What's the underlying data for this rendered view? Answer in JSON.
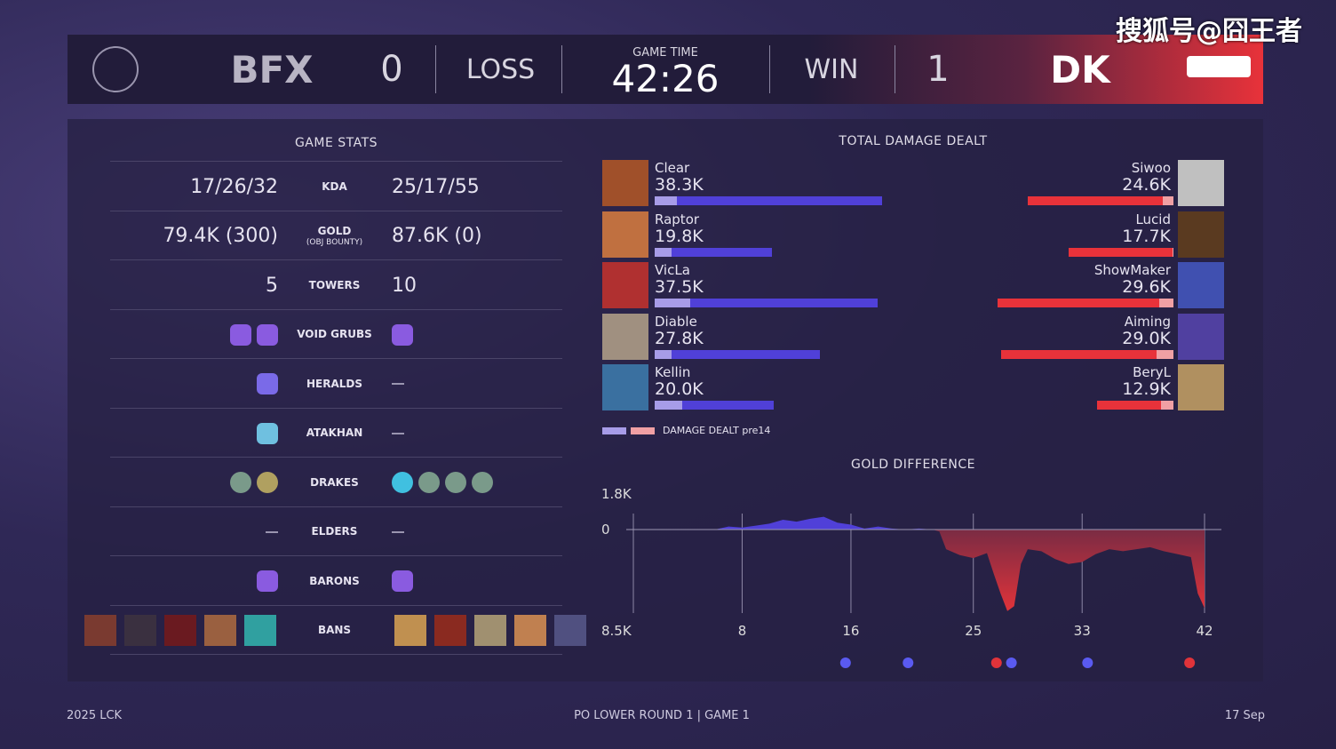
{
  "watermark": "搜狐号@囧王者",
  "scoreboard": {
    "left_team": "BFX",
    "left_score": "0",
    "left_result": "LOSS",
    "game_time_label": "GAME TIME",
    "game_time": "42:26",
    "right_result": "WIN",
    "right_score": "1",
    "right_team": "DK",
    "accent_right": "#e8323a"
  },
  "game_stats": {
    "title": "GAME STATS",
    "rows": [
      {
        "label": "KDA",
        "left": "17/26/32",
        "right": "25/17/55"
      },
      {
        "label": "GOLD",
        "sublabel": "(OBJ BOUNTY)",
        "left": "79.4K (300)",
        "right": "87.6K (0)"
      },
      {
        "label": "TOWERS",
        "left": "5",
        "right": "10"
      },
      {
        "label": "VOID GRUBS",
        "left_icons": [
          "void-grub",
          "void-grub"
        ],
        "right_icons": [
          "void-grub"
        ]
      },
      {
        "label": "HERALDS",
        "left_icons": [
          "herald"
        ],
        "right_icons": []
      },
      {
        "label": "ATAKHAN",
        "left_icons": [
          "atakhan"
        ],
        "right_icons": []
      },
      {
        "label": "DRAKES",
        "left_icons": [
          "cloud-drake",
          "mountain-drake"
        ],
        "right_icons": [
          "hextech-drake",
          "cloud-drake",
          "cloud-drake",
          "cloud-drake"
        ]
      },
      {
        "label": "ELDERS",
        "left_icons": [],
        "right_icons": []
      },
      {
        "label": "BARONS",
        "left_icons": [
          "baron"
        ],
        "right_icons": [
          "baron"
        ]
      },
      {
        "label": "BANS",
        "left_bans": 5,
        "right_bans": 5
      }
    ]
  },
  "damage": {
    "title": "TOTAL DAMAGE DEALT",
    "legend": "DAMAGE DEALT pre14",
    "colors": {
      "blue": "#5040d8",
      "blue_light": "#a79ce8",
      "red": "#e8323a",
      "red_light": "#f0a0a4"
    },
    "left": [
      {
        "name": "Clear",
        "value": "38.3K",
        "total": 38.3,
        "pre14": 3.7
      },
      {
        "name": "Raptor",
        "value": "19.8K",
        "total": 19.8,
        "pre14": 2.8
      },
      {
        "name": "VicLa",
        "value": "37.5K",
        "total": 37.5,
        "pre14": 6.0
      },
      {
        "name": "Diable",
        "value": "27.8K",
        "total": 27.8,
        "pre14": 2.8
      },
      {
        "name": "Kellin",
        "value": "20.0K",
        "total": 20.0,
        "pre14": 4.6
      }
    ],
    "right": [
      {
        "name": "Siwoo",
        "value": "24.6K",
        "total": 24.6,
        "pre14": 1.8
      },
      {
        "name": "Lucid",
        "value": "17.7K",
        "total": 17.7,
        "pre14": 0.2
      },
      {
        "name": "ShowMaker",
        "value": "29.6K",
        "total": 29.6,
        "pre14": 2.4
      },
      {
        "name": "Aiming",
        "value": "29.0K",
        "total": 29.0,
        "pre14": 2.9
      },
      {
        "name": "BeryL",
        "value": "12.9K",
        "total": 12.9,
        "pre14": 2.1
      }
    ]
  },
  "chart_data": {
    "type": "area",
    "title": "GOLD DIFFERENCE",
    "y_top_label": "1.8K",
    "y_zero_label": "0",
    "y_bottom_label": "8.5K",
    "ylim": [
      -8500,
      1800
    ],
    "xlim": [
      0,
      42
    ],
    "x_ticks": [
      "8",
      "16",
      "25",
      "33",
      "42"
    ],
    "x": [
      0,
      6,
      7,
      8,
      9,
      10,
      11,
      12,
      13,
      14,
      15,
      16,
      17,
      18,
      19,
      20,
      21,
      22,
      22.5,
      23,
      24,
      25,
      26,
      26.5,
      27,
      27.5,
      28,
      28.5,
      29,
      30,
      31,
      32,
      33,
      34,
      35,
      36,
      37,
      38,
      39,
      40,
      41,
      41.5,
      42
    ],
    "y": [
      0,
      0,
      300,
      200,
      400,
      600,
      1000,
      800,
      1100,
      1300,
      700,
      500,
      100,
      300,
      100,
      0,
      100,
      0,
      -200,
      -2000,
      -2600,
      -2900,
      -2400,
      -4500,
      -6500,
      -8300,
      -7800,
      -3500,
      -2000,
      -2200,
      -3000,
      -3500,
      -3300,
      -2500,
      -2000,
      -2200,
      -2000,
      -1800,
      -2200,
      -2500,
      -2800,
      -6500,
      -8000
    ],
    "colors": {
      "positive": "#5040d8",
      "negative": "#e0333a"
    },
    "events": [
      {
        "time": 15.6,
        "icon": "herald",
        "team": "blue"
      },
      {
        "time": 20.2,
        "icon": "atakhan",
        "team": "blue"
      },
      {
        "time": 26.7,
        "icon": "baron",
        "team": "red"
      },
      {
        "time": 27.8,
        "icon": "elder-a",
        "team": "blue"
      },
      {
        "time": 33.4,
        "icon": "baron",
        "team": "blue"
      },
      {
        "time": 40.9,
        "icon": "elder-a",
        "team": "red"
      }
    ]
  },
  "footer": {
    "left": "2025 LCK",
    "center": "PO LOWER ROUND 1  |  GAME 1",
    "right": "17 Sep"
  }
}
